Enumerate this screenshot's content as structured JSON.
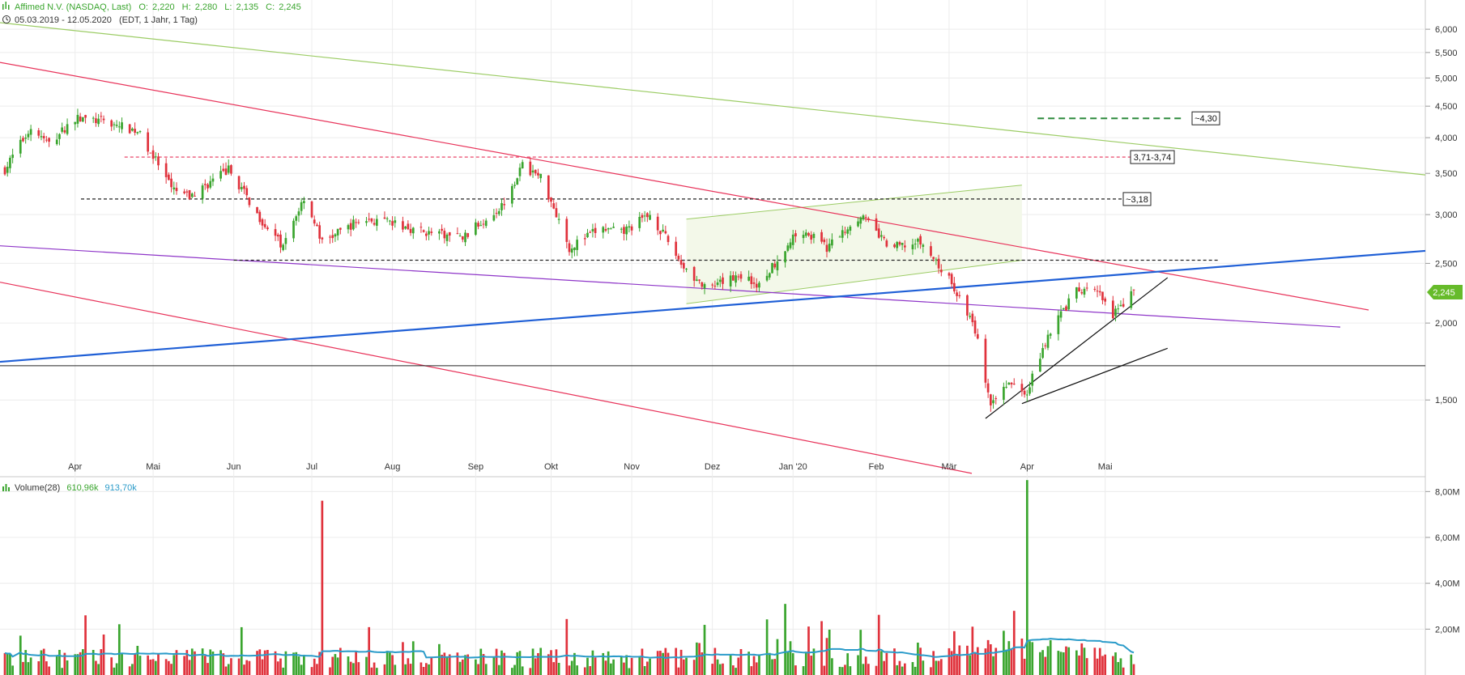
{
  "header": {
    "title_line": "Affimed N.V. (NASDAQ, Last)",
    "ohlc": [
      {
        "label": "O:",
        "value": "2,220"
      },
      {
        "label": "H:",
        "value": "2,280"
      },
      {
        "label": "L:",
        "value": "2,135"
      },
      {
        "label": "C:",
        "value": "2,245"
      }
    ],
    "range_line": "05.03.2019 - 12.05.2020",
    "range_extra": "(EDT, 1 Jahr, 1 Tag)"
  },
  "price_panel": {
    "y_ticks": [
      "6,000",
      "5,500",
      "5,000",
      "4,500",
      "4,000",
      "3,500",
      "3,000",
      "2,500",
      "2,000",
      "1,500"
    ],
    "y_tick_values": [
      6.0,
      5.5,
      5.0,
      4.5,
      4.0,
      3.5,
      3.0,
      2.5,
      2.0,
      1.5
    ],
    "y_scale": "log",
    "ylim": [
      1.15,
      6.3
    ],
    "x_ticks": [
      "Apr",
      "Mai",
      "Jun",
      "Jul",
      "Aug",
      "Sep",
      "Okt",
      "Nov",
      "Dez",
      "Jan '20",
      "Feb",
      "Mär",
      "Apr",
      "Mai"
    ],
    "last_price_label": "2,245",
    "annotations": [
      "~4,30",
      "3,71-3,74",
      "~3,18"
    ]
  },
  "volume_panel": {
    "title": "Volume(28)",
    "value_1": "610,96k",
    "value_2": "913,70k",
    "y_ticks": [
      "8,00M",
      "6,00M",
      "4,00M",
      "2,00M"
    ],
    "y_tick_values": [
      8.0,
      6.0,
      4.0,
      2.0
    ],
    "ylim": [
      0,
      8.4
    ]
  },
  "colors": {
    "up": "#3aa52e",
    "down": "#e0323c",
    "blue_trend": "#1f5fd6",
    "red_trend": "#e8335a",
    "green_trend": "#9ccc65",
    "purple_trend": "#8e35c8",
    "volume_ma": "#2a9bc9",
    "last_price_bg": "#66bb2a"
  },
  "chart_data": {
    "type": "candlestick",
    "series_note": "",
    "start_date": "2019-03-05",
    "end_date": "2020-05-12",
    "monthly_close_estimates": {
      "x": [
        "2019-03",
        "2019-04",
        "2019-05",
        "2019-06",
        "2019-07",
        "2019-08",
        "2019-09",
        "2019-10",
        "2019-11",
        "2019-12",
        "2020-01",
        "2020-02",
        "2020-03",
        "2020-04",
        "2020-05"
      ],
      "y": [
        3.6,
        4.3,
        3.5,
        2.6,
        2.9,
        2.8,
        3.5,
        2.7,
        2.4,
        2.4,
        3.0,
        2.7,
        1.5,
        2.3,
        2.245
      ]
    },
    "levels": [
      {
        "label": "~4,30",
        "value": 4.3
      },
      {
        "label": "3,71-3,74",
        "value": 3.72
      },
      {
        "label": "~3,18",
        "value": 3.18
      },
      {
        "label": "",
        "value": 2.53
      },
      {
        "label": "",
        "value": 1.7
      }
    ],
    "volume_peaks": [
      {
        "x": "2019-07-05",
        "value": 7.6
      },
      {
        "x": "2020-04-01",
        "value": 8.1
      },
      {
        "x": "2019-12-30",
        "value": 3.1
      },
      {
        "x": "2020-03-27",
        "value": 2.4
      }
    ]
  }
}
